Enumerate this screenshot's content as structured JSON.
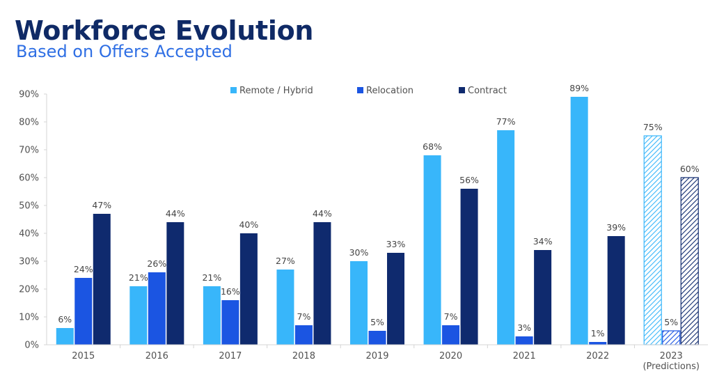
{
  "header": {
    "title": "Workforce Evolution",
    "subtitle": "Based on Offers Accepted"
  },
  "chart_data": {
    "type": "bar",
    "categories": [
      "2015",
      "2016",
      "2017",
      "2018",
      "2019",
      "2020",
      "2021",
      "2022",
      "2023"
    ],
    "category_sublabels": [
      "",
      "",
      "",
      "",
      "",
      "",
      "",
      "",
      "(Predictions)"
    ],
    "series": [
      {
        "name": "Remote / Hybrid",
        "color": "#38b6fa",
        "values": [
          6,
          21,
          21,
          27,
          30,
          68,
          77,
          89,
          75
        ]
      },
      {
        "name": "Relocation",
        "color": "#1b55e2",
        "values": [
          24,
          26,
          16,
          7,
          5,
          7,
          3,
          1,
          5
        ]
      },
      {
        "name": "Contract",
        "color": "#0f2a6e",
        "values": [
          47,
          44,
          40,
          44,
          33,
          56,
          34,
          39,
          60
        ]
      }
    ],
    "value_suffix": "%",
    "ylim": [
      0,
      90
    ],
    "yticks": [
      0,
      10,
      20,
      30,
      40,
      50,
      60,
      70,
      80,
      90
    ],
    "ytick_labels": [
      "0%",
      "10%",
      "20%",
      "30%",
      "40%",
      "50%",
      "60%",
      "70%",
      "80%",
      "90%"
    ],
    "prediction_category": "2023",
    "prediction_style": "hatched",
    "grid": false,
    "legend_position": "top"
  }
}
